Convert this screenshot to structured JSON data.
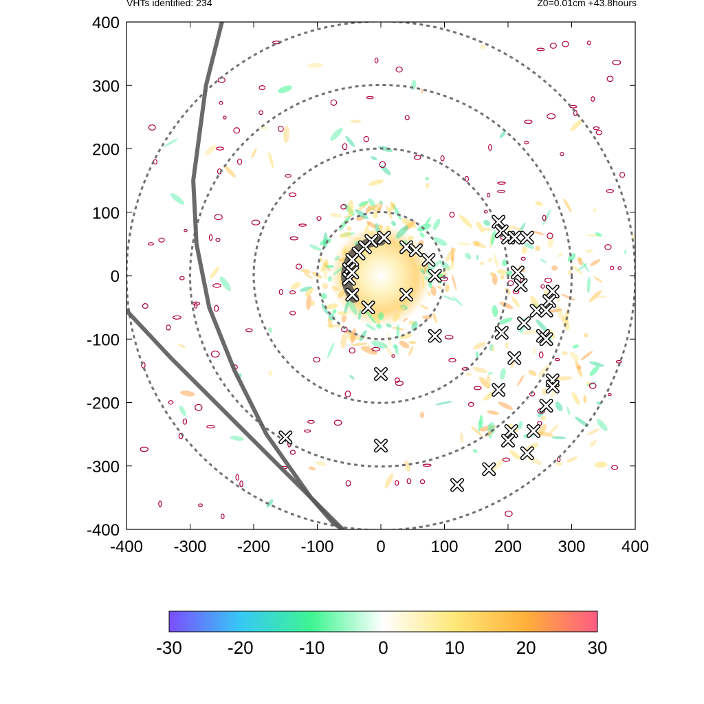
{
  "header": {
    "left_text": "VHTs identified: 234",
    "right_text": "Z0=0.01cm  +43.8hours"
  },
  "chart_data": {
    "type": "scatter",
    "title": "",
    "xlabel": "",
    "ylabel": "",
    "xlim": [
      -400,
      400
    ],
    "ylim": [
      -400,
      400
    ],
    "x_ticks": [
      -400,
      -300,
      -200,
      -100,
      0,
      100,
      200,
      300,
      400
    ],
    "y_ticks": [
      -400,
      -300,
      -200,
      -100,
      0,
      100,
      200,
      300,
      400
    ],
    "grid": false,
    "range_rings": [
      100,
      200,
      300,
      400
    ],
    "vht_markers": [
      [
        5,
        60
      ],
      [
        -15,
        55
      ],
      [
        -25,
        45
      ],
      [
        -35,
        35
      ],
      [
        -45,
        25
      ],
      [
        -50,
        10
      ],
      [
        -50,
        -5
      ],
      [
        -45,
        5
      ],
      [
        40,
        45
      ],
      [
        55,
        40
      ],
      [
        75,
        25
      ],
      [
        85,
        0
      ],
      [
        40,
        -30
      ],
      [
        -45,
        -30
      ],
      [
        -20,
        -50
      ],
      [
        185,
        85
      ],
      [
        190,
        70
      ],
      [
        200,
        60
      ],
      [
        210,
        60
      ],
      [
        230,
        60
      ],
      [
        215,
        5
      ],
      [
        220,
        -15
      ],
      [
        270,
        -25
      ],
      [
        265,
        -40
      ],
      [
        245,
        -55
      ],
      [
        260,
        -55
      ],
      [
        225,
        -75
      ],
      [
        190,
        -90
      ],
      [
        255,
        -95
      ],
      [
        260,
        -100
      ],
      [
        210,
        -130
      ],
      [
        85,
        -95
      ],
      [
        0,
        -155
      ],
      [
        270,
        -165
      ],
      [
        270,
        -175
      ],
      [
        185,
        -180
      ],
      [
        260,
        -205
      ],
      [
        205,
        -245
      ],
      [
        200,
        -260
      ],
      [
        230,
        -280
      ],
      [
        -150,
        -255
      ],
      [
        0,
        -268
      ],
      [
        170,
        -305
      ],
      [
        120,
        -330
      ],
      [
        240,
        -245
      ]
    ],
    "tracks": [
      {
        "points": [
          [
            -250,
            400
          ],
          [
            -275,
            300
          ],
          [
            -295,
            150
          ],
          [
            -290,
            50
          ],
          [
            -270,
            -50
          ],
          [
            -230,
            -150
          ],
          [
            -180,
            -250
          ],
          [
            -110,
            -350
          ],
          [
            -60,
            -400
          ]
        ]
      },
      {
        "points": [
          [
            -400,
            -55
          ],
          [
            -330,
            -130
          ],
          [
            -260,
            -200
          ],
          [
            -200,
            -260
          ],
          [
            -155,
            -305
          ],
          [
            -110,
            -350
          ],
          [
            -75,
            -390
          ],
          [
            -60,
            -400
          ]
        ]
      }
    ],
    "colorbar": {
      "min": -30,
      "max": 30,
      "ticks": [
        -30,
        -20,
        -10,
        0,
        10,
        20,
        30
      ],
      "colors": [
        "#7b4dff",
        "#36c8f5",
        "#3ef591",
        "#ffffff",
        "#ffe878",
        "#ffb03a",
        "#ff5b83"
      ]
    },
    "colors": {
      "ring": "#707070",
      "track": "#5a5a5a",
      "contour": "#b0003a"
    }
  }
}
